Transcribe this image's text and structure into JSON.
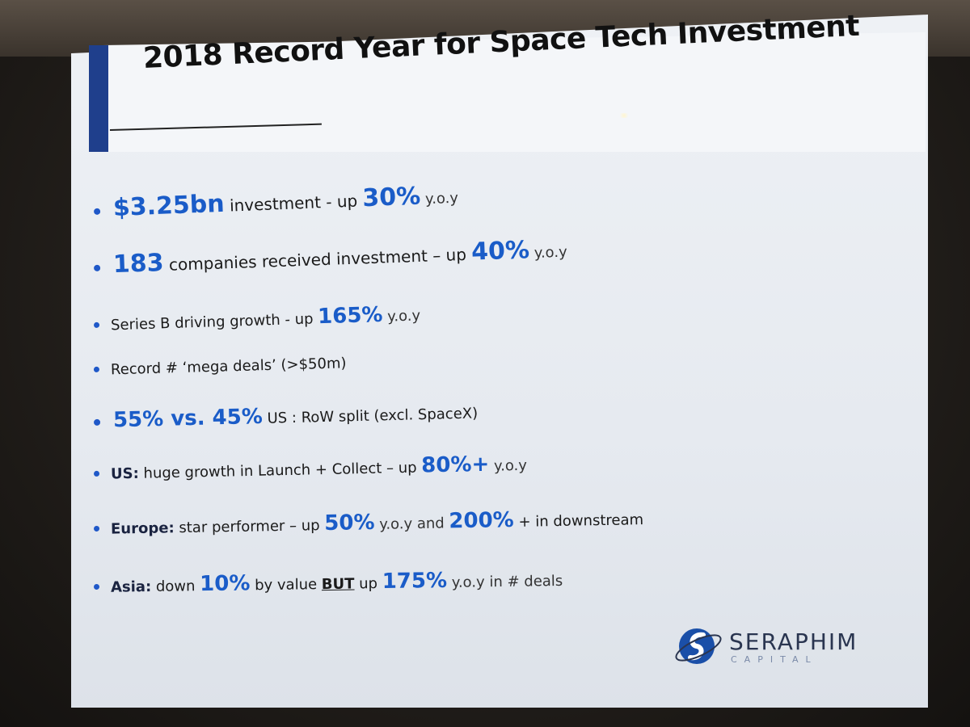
{
  "slide": {
    "title": "2018 Record Year for Space Tech Investment"
  },
  "bullets": [
    {
      "parts": [
        "$3.25bn",
        " investment - up ",
        "30%",
        " y.o.y"
      ]
    },
    {
      "parts": [
        "183",
        " companies received investment – up ",
        "40%",
        " y.o.y"
      ]
    },
    {
      "parts": [
        "Series B driving growth - up ",
        "165%",
        " y.o.y"
      ]
    },
    {
      "parts": [
        "Record # ‘mega deals’ (>$50m)"
      ]
    },
    {
      "parts": [
        "55% vs. 45%",
        " US : RoW split (excl. SpaceX)"
      ]
    },
    {
      "parts": [
        "US:",
        " huge growth in Launch + Collect – up ",
        "80%+",
        " y.o.y"
      ]
    },
    {
      "parts": [
        "Europe:",
        " star performer – up ",
        "50%",
        " y.o.y and ",
        "200%",
        " + in downstream"
      ]
    },
    {
      "parts": [
        "Asia:",
        " down ",
        "10%",
        " by value ",
        "BUT",
        " up ",
        "175%",
        " y.o.y in # deals"
      ]
    }
  ],
  "logo": {
    "name": "SERAPHIM",
    "sub": "CAPITAL"
  },
  "colors": {
    "accent": "#1f3f8c",
    "highlight": "#1a5cc8",
    "slide_bg": "#e6eaf0"
  }
}
